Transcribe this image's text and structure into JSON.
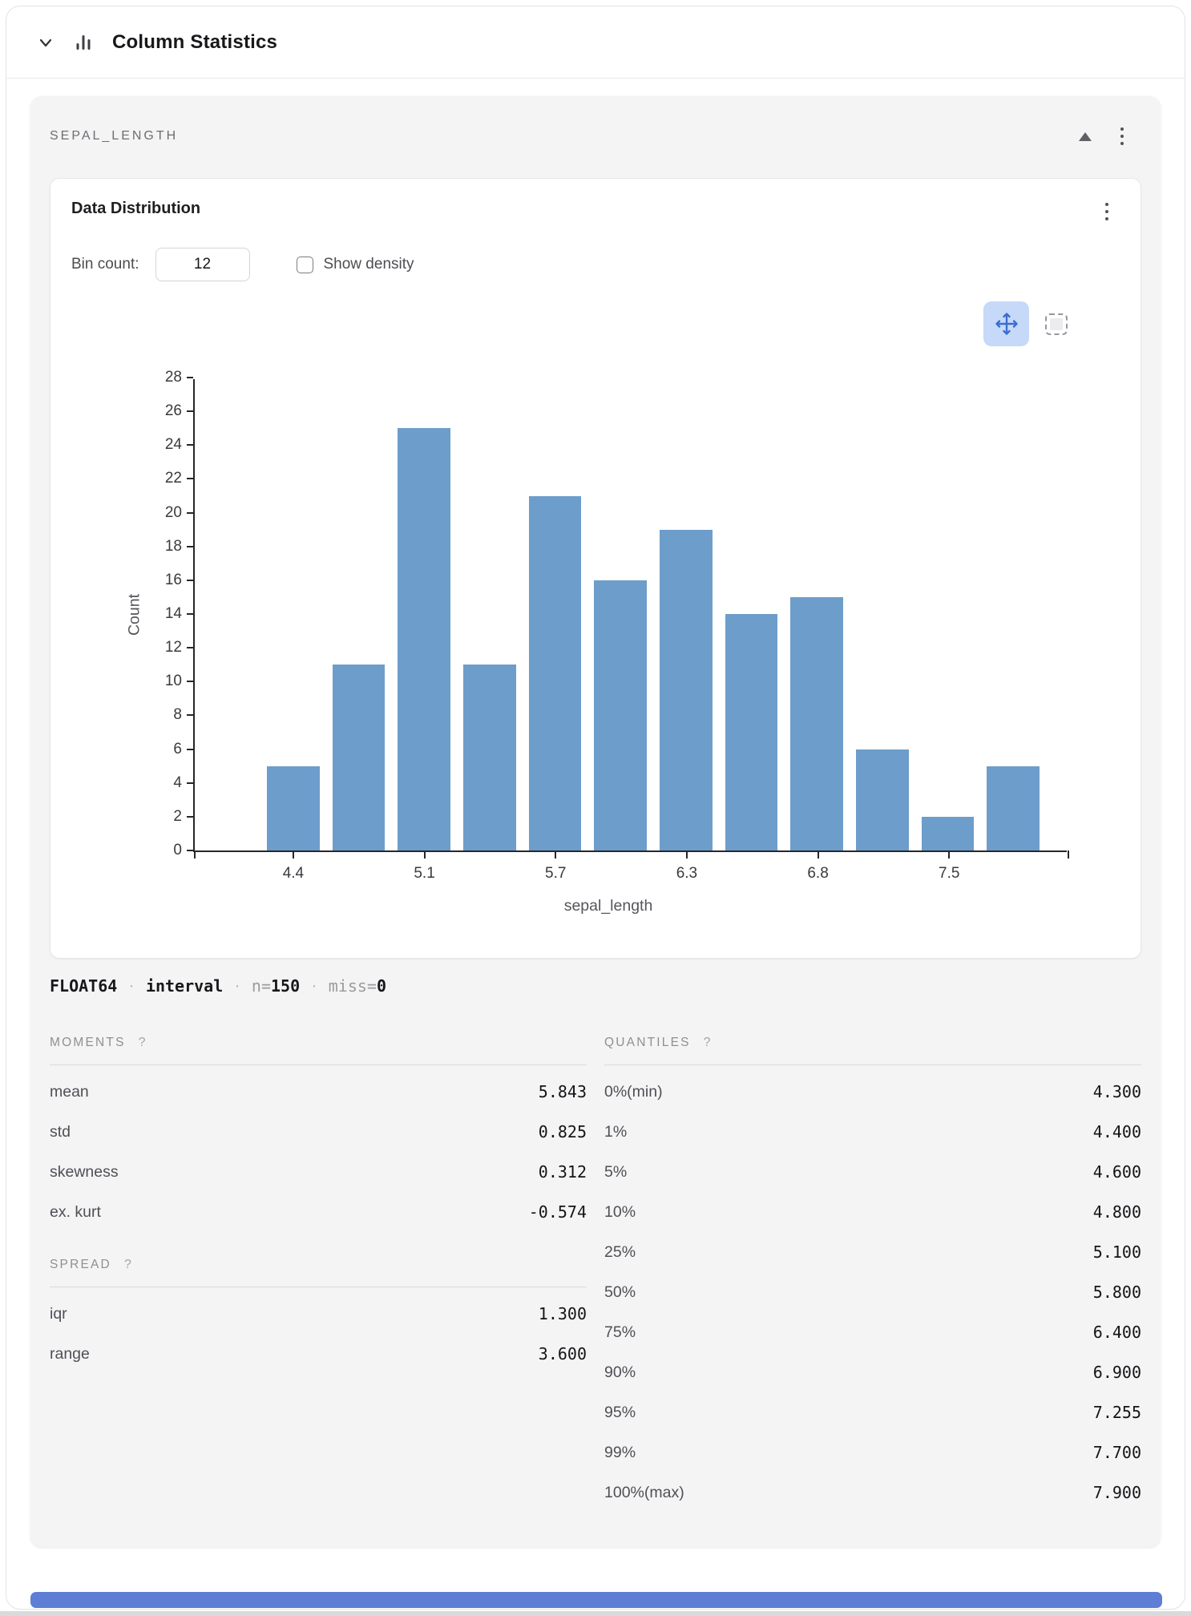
{
  "header": {
    "title": "Column Statistics"
  },
  "column_card": {
    "name": "SEPAL_LENGTH",
    "chart_card": {
      "title": "Data Distribution",
      "bin_count_label": "Bin count:",
      "bin_count_value": "12",
      "show_density_label": "Show density",
      "show_density_checked": false
    },
    "type_line": {
      "dtype": "FLOAT64",
      "kind": "interval",
      "sep": "·",
      "n_label": "n=",
      "n_value": "150",
      "miss_label": "miss=",
      "miss_value": "0"
    },
    "sections": {
      "moments": {
        "title": "MOMENTS",
        "help": "?",
        "rows": [
          {
            "label": "mean",
            "value": "5.843"
          },
          {
            "label": "std",
            "value": "0.825"
          },
          {
            "label": "skewness",
            "value": "0.312"
          },
          {
            "label": "ex. kurt",
            "value": "-0.574"
          }
        ]
      },
      "spread": {
        "title": "SPREAD",
        "help": "?",
        "rows": [
          {
            "label": "iqr",
            "value": "1.300"
          },
          {
            "label": "range",
            "value": "3.600"
          }
        ]
      },
      "quantiles": {
        "title": "QUANTILES",
        "help": "?",
        "rows": [
          {
            "label": "0%(min)",
            "value": "4.300"
          },
          {
            "label": "1%",
            "value": "4.400"
          },
          {
            "label": "5%",
            "value": "4.600"
          },
          {
            "label": "10%",
            "value": "4.800"
          },
          {
            "label": "25%",
            "value": "5.100"
          },
          {
            "label": "50%",
            "value": "5.800"
          },
          {
            "label": "75%",
            "value": "6.400"
          },
          {
            "label": "90%",
            "value": "6.900"
          },
          {
            "label": "95%",
            "value": "7.255"
          },
          {
            "label": "99%",
            "value": "7.700"
          },
          {
            "label": "100%(max)",
            "value": "7.900"
          }
        ]
      }
    }
  },
  "chart_data": {
    "type": "bar",
    "title": "Data Distribution histogram of sepal_length",
    "xlabel": "sepal_length",
    "ylabel": "Count",
    "values": [
      5,
      11,
      25,
      11,
      21,
      16,
      19,
      14,
      15,
      6,
      2,
      5
    ],
    "n_total": 150,
    "y_ticks": [
      0,
      2,
      4,
      6,
      8,
      10,
      12,
      14,
      16,
      18,
      20,
      22,
      24,
      26,
      28
    ],
    "ylim": [
      0,
      28
    ],
    "x_tick_labels": [
      "4.4",
      "5.1",
      "5.7",
      "6.3",
      "6.8",
      "7.5"
    ],
    "x_tick_bar_index": [
      0,
      2,
      4,
      6,
      8,
      10
    ],
    "grid": false,
    "legend": false,
    "bar_color": "#6d9dca"
  },
  "colors": {
    "accent_bottom_bar": "#5e7ed6",
    "histogram_bar": "#6d9dca",
    "pan_button_bg": "#c7d9f9",
    "pan_icon": "#3b6ed0",
    "card_bg": "#f4f4f5"
  }
}
